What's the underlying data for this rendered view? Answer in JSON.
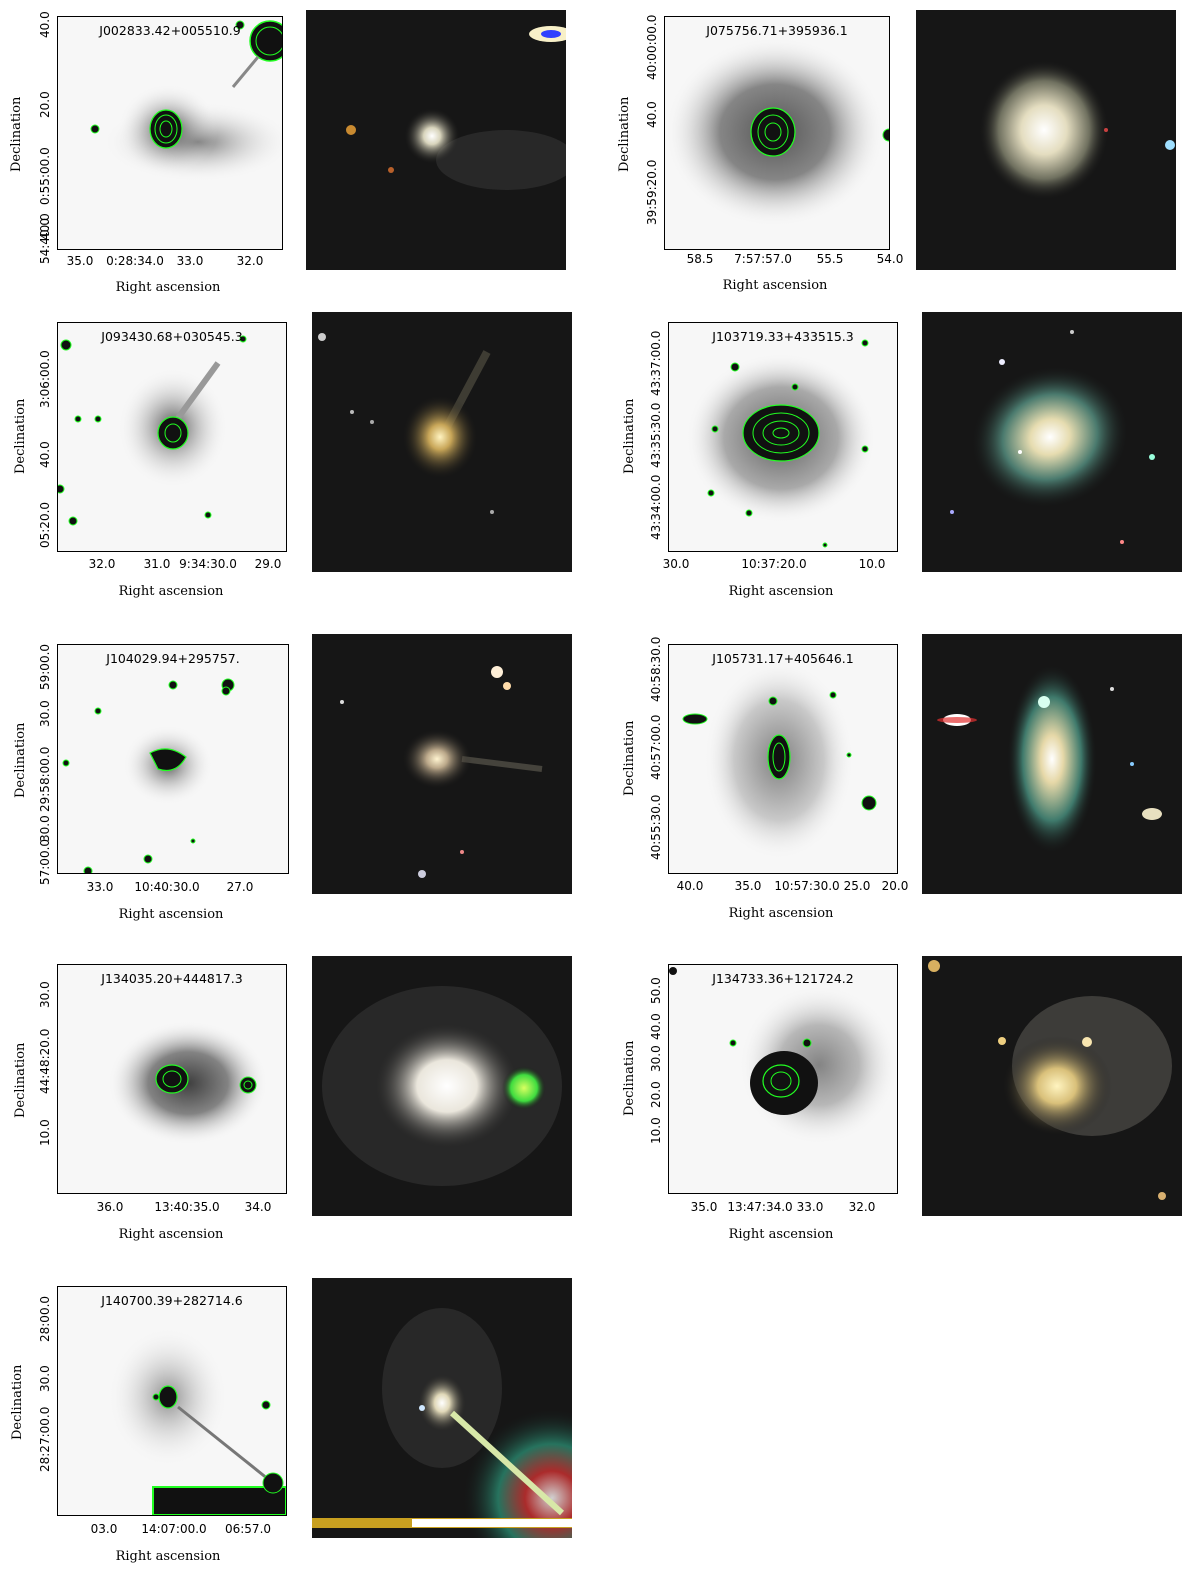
{
  "axis_labels": {
    "x": "Right ascension",
    "y": "Declination"
  },
  "panels": [
    {
      "title": "J002833.42+005510.9",
      "xticks": [
        "35.0",
        "0:28:34.0",
        "33.0",
        "32.0"
      ],
      "yticks": [
        "40.0",
        "20.0",
        "0:55:00.0",
        "40.0",
        "54:40.0"
      ]
    },
    {
      "title": "J075756.71+395936.1",
      "xticks": [
        "58.5",
        "7:57:57.0",
        "55.5",
        "54.0"
      ],
      "yticks": [
        "40:00:00.0",
        "40.0",
        "39:59:20.0"
      ]
    },
    {
      "title": "J093430.68+030545.3",
      "xticks": [
        "32.0",
        "31.0",
        "9:34:30.0",
        "29.0"
      ],
      "yticks": [
        "3:06:00.0",
        "40.0",
        "05:20.0"
      ]
    },
    {
      "title": "J103719.33+433515.3",
      "xticks": [
        "30.0",
        "10:37:20.0",
        "10.0"
      ],
      "yticks": [
        "43:37:00.0",
        "43:35:30.0",
        "43:34:00.0"
      ]
    },
    {
      "title": "J104029.94+295757.",
      "xticks": [
        "33.0",
        "10:40:30.0",
        "27.0"
      ],
      "yticks": [
        "59:00.0",
        "30.0",
        "29:58:00.0",
        "30.0",
        "57:00.0"
      ]
    },
    {
      "title": "J105731.17+405646.1",
      "xticks": [
        "40.0",
        "35.0",
        "10:57:30.0",
        "25.0",
        "20.0"
      ],
      "yticks": [
        "40:58:30.0",
        "40:57:00.0",
        "40:55:30.0"
      ]
    },
    {
      "title": "J134035.20+444817.3",
      "xticks": [
        "36.0",
        "13:40:35.0",
        "34.0"
      ],
      "yticks": [
        "30.0",
        "44:48:20.0",
        "10.0"
      ]
    },
    {
      "title": "J134733.36+121724.2",
      "xticks": [
        "35.0",
        "13:47:34.0",
        "33.0",
        "32.0"
      ],
      "yticks": [
        "50.0",
        "40.0",
        "30.0",
        "20.0",
        "10.0"
      ]
    },
    {
      "title": "J140700.39+282714.6",
      "xticks": [
        "03.0",
        "14:07:00.0",
        "06:57.0"
      ],
      "yticks": [
        "28:00.0",
        "30.0",
        "28:27:00.0"
      ]
    }
  ]
}
